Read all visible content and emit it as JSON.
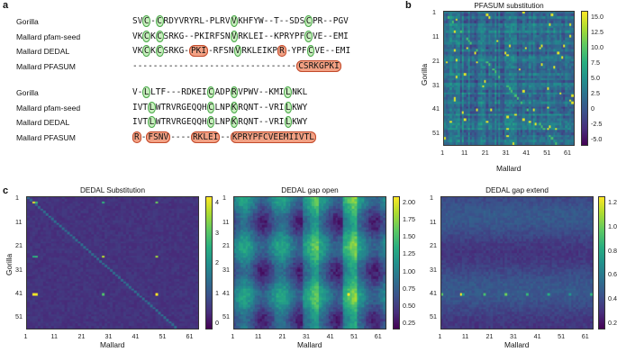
{
  "panel_a": {
    "letter": "a",
    "block1": [
      {
        "label": "Gorilla",
        "segments": [
          [
            "SV",
            ""
          ],
          [
            "C",
            "g"
          ],
          [
            "-",
            ""
          ],
          [
            "C",
            "g"
          ],
          [
            "RDYVRYRL-PLRV",
            ""
          ],
          [
            "V",
            "g"
          ],
          [
            "KHFYW--T--SDS",
            ""
          ],
          [
            "C",
            "g"
          ],
          [
            "PR--PGV",
            ""
          ]
        ]
      },
      {
        "label": "Mallard pfam-seed",
        "segments": [
          [
            "VK",
            ""
          ],
          [
            "C",
            "g"
          ],
          [
            "K",
            ""
          ],
          [
            "C",
            "g"
          ],
          [
            "SRKG--PKIRFSN",
            ""
          ],
          [
            "V",
            "g"
          ],
          [
            "RKLEI--KPRYPF",
            ""
          ],
          [
            "C",
            "g"
          ],
          [
            "VE--EMI",
            ""
          ]
        ]
      },
      {
        "label": "Mallard DEDAL",
        "segments": [
          [
            "VK",
            ""
          ],
          [
            "C",
            "g"
          ],
          [
            "K",
            ""
          ],
          [
            "C",
            "g"
          ],
          [
            "SRKG-",
            ""
          ],
          [
            "PKI",
            "o"
          ],
          [
            "-RFSN",
            ""
          ],
          [
            "V",
            "g"
          ],
          [
            "RKLEIKP",
            ""
          ],
          [
            "R",
            "o"
          ],
          [
            "-YPF",
            ""
          ],
          [
            "C",
            "g"
          ],
          [
            "VE--EMI",
            ""
          ]
        ]
      },
      {
        "label": "Mallard PFASUM",
        "segments": [
          [
            "--------------------------------",
            ""
          ],
          [
            "CSRKGPKI",
            "o"
          ]
        ]
      }
    ],
    "block2": [
      {
        "label": "Gorilla",
        "segments": [
          [
            "V-",
            ""
          ],
          [
            "L",
            "g"
          ],
          [
            "LTF---RDKEI",
            ""
          ],
          [
            "C",
            "g"
          ],
          [
            "ADP",
            ""
          ],
          [
            "R",
            "g"
          ],
          [
            "VPWV--KMI",
            ""
          ],
          [
            "L",
            "g"
          ],
          [
            "NKL",
            ""
          ]
        ]
      },
      {
        "label": "Mallard pfam-seed",
        "segments": [
          [
            "IVT",
            ""
          ],
          [
            "L",
            "g"
          ],
          [
            "WTRVRGEQQH",
            ""
          ],
          [
            "C",
            "g"
          ],
          [
            "LNP",
            ""
          ],
          [
            "K",
            "g"
          ],
          [
            "RQNT--VRI",
            ""
          ],
          [
            "L",
            "g"
          ],
          [
            "KWY",
            ""
          ]
        ]
      },
      {
        "label": "Mallard DEDAL",
        "segments": [
          [
            "IVT",
            ""
          ],
          [
            "L",
            "g"
          ],
          [
            "WTRVRGEQQH",
            ""
          ],
          [
            "C",
            "g"
          ],
          [
            "LNP",
            ""
          ],
          [
            "K",
            "g"
          ],
          [
            "RQNT--VRI",
            ""
          ],
          [
            "L",
            "g"
          ],
          [
            "KWY",
            ""
          ]
        ]
      },
      {
        "label": "Mallard PFASUM",
        "segments": [
          [
            "R",
            "o"
          ],
          [
            "-",
            ""
          ],
          [
            "FSNV",
            "o"
          ],
          [
            "----",
            ""
          ],
          [
            "RKLEI",
            "o"
          ],
          [
            "--",
            ""
          ],
          [
            "KPRYPFCVEEMIIVTL",
            "o"
          ]
        ]
      }
    ]
  },
  "panel_b": {
    "letter": "b",
    "title": "PFASUM substitution",
    "xlabel": "Mallard",
    "ylabel": "Gorilla",
    "xticks": [
      "1",
      "11",
      "21",
      "31",
      "41",
      "51",
      "61"
    ],
    "yticks": [
      "1",
      "11",
      "21",
      "31",
      "41",
      "51"
    ],
    "cbar_ticks": [
      "15.0",
      "12.5",
      "10.0",
      "7.5",
      "5.0",
      "2.5",
      "0",
      "-2.5",
      "-5.0"
    ],
    "colors": {
      "low": "#440154",
      "high": "#fde725"
    }
  },
  "panel_c": {
    "letter": "c",
    "heatmaps": [
      {
        "title": "DEDAL Substitution",
        "xlabel": "Mallard",
        "ylabel": "Gorilla",
        "xticks": [
          "1",
          "11",
          "21",
          "31",
          "41",
          "51",
          "61"
        ],
        "yticks": [
          "1",
          "11",
          "21",
          "31",
          "41",
          "51"
        ],
        "cbar_ticks": [
          "4",
          "3",
          "2",
          "1",
          "0"
        ]
      },
      {
        "title": "DEDAL gap open",
        "xlabel": "Mallard",
        "ylabel": "",
        "xticks": [
          "1",
          "11",
          "21",
          "31",
          "41",
          "51",
          "61"
        ],
        "yticks": [
          "1",
          "11",
          "21",
          "31",
          "41",
          "51"
        ],
        "cbar_ticks": [
          "2.00",
          "1.75",
          "1.50",
          "1.25",
          "1.00",
          "0.75",
          "0.50",
          "0.25"
        ]
      },
      {
        "title": "DEDAL gap extend",
        "xlabel": "Mallard",
        "ylabel": "",
        "xticks": [
          "1",
          "11",
          "21",
          "31",
          "41",
          "51",
          "61"
        ],
        "yticks": [
          "1",
          "11",
          "21",
          "31",
          "41",
          "51"
        ],
        "cbar_ticks": [
          "1.2",
          "1.0",
          "0.8",
          "0.6",
          "0.4",
          "0.2"
        ]
      }
    ]
  }
}
